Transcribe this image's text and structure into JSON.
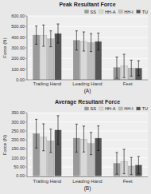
{
  "chart_data": [
    {
      "type": "bar",
      "title": "Peak Resultant Force",
      "ylabel": "Force (N)",
      "annotations": [
        "(A)"
      ],
      "categories": [
        "Trailing Hand",
        "Leading Hand",
        "Feet"
      ],
      "series": [
        {
          "name": "SS",
          "color": "#999999",
          "values": [
            420,
            370,
            115
          ],
          "errors": [
            85,
            90,
            100
          ]
        },
        {
          "name": "HH-A",
          "color": "#d9d9d9",
          "values": [
            415,
            360,
            130
          ],
          "errors": [
            100,
            90,
            110
          ]
        },
        {
          "name": "HH-I",
          "color": "#bdbdbd",
          "values": [
            385,
            350,
            110
          ],
          "errors": [
            75,
            85,
            75
          ]
        },
        {
          "name": "TU",
          "color": "#555555",
          "values": [
            435,
            360,
            110
          ],
          "errors": [
            90,
            80,
            70
          ]
        }
      ],
      "ylim": [
        0,
        600
      ],
      "yticks": [
        {
          "value": 0,
          "label": "0.00"
        },
        {
          "value": 100,
          "label": "100.00"
        },
        {
          "value": 200,
          "label": "200.00"
        },
        {
          "value": 300,
          "label": "300.00"
        },
        {
          "value": 400,
          "label": "400.00"
        },
        {
          "value": 500,
          "label": "500.00"
        },
        {
          "value": 600,
          "label": "600.00"
        }
      ],
      "grid": true,
      "legend": "upper right"
    },
    {
      "type": "bar",
      "title": "Average Resultant Force",
      "ylabel": "Force (N)",
      "annotations": [
        "(B)"
      ],
      "categories": [
        "Trailing Hand",
        "Leading Hand",
        "Feet"
      ],
      "series": [
        {
          "name": "SS",
          "color": "#999999",
          "values": [
            235,
            210,
            70
          ],
          "errors": [
            80,
            78,
            60
          ]
        },
        {
          "name": "HH-A",
          "color": "#d9d9d9",
          "values": [
            215,
            205,
            80
          ],
          "errors": [
            75,
            72,
            68
          ]
        },
        {
          "name": "HH-I",
          "color": "#bdbdbd",
          "values": [
            195,
            180,
            55
          ],
          "errors": [
            65,
            62,
            48
          ]
        },
        {
          "name": "TU",
          "color": "#555555",
          "values": [
            255,
            210,
            60
          ],
          "errors": [
            80,
            68,
            48
          ]
        }
      ],
      "ylim": [
        -5,
        350
      ],
      "yticks": [
        {
          "value": 0,
          "label": "0.00"
        },
        {
          "value": 50,
          "label": "50.00"
        },
        {
          "value": 100,
          "label": "100.00"
        },
        {
          "value": 150,
          "label": "150.00"
        },
        {
          "value": 200,
          "label": "200.00"
        },
        {
          "value": 250,
          "label": "250.00"
        },
        {
          "value": 300,
          "label": "300.00"
        },
        {
          "value": 350,
          "label": "350.00"
        }
      ],
      "grid": true,
      "legend": "upper right"
    }
  ]
}
